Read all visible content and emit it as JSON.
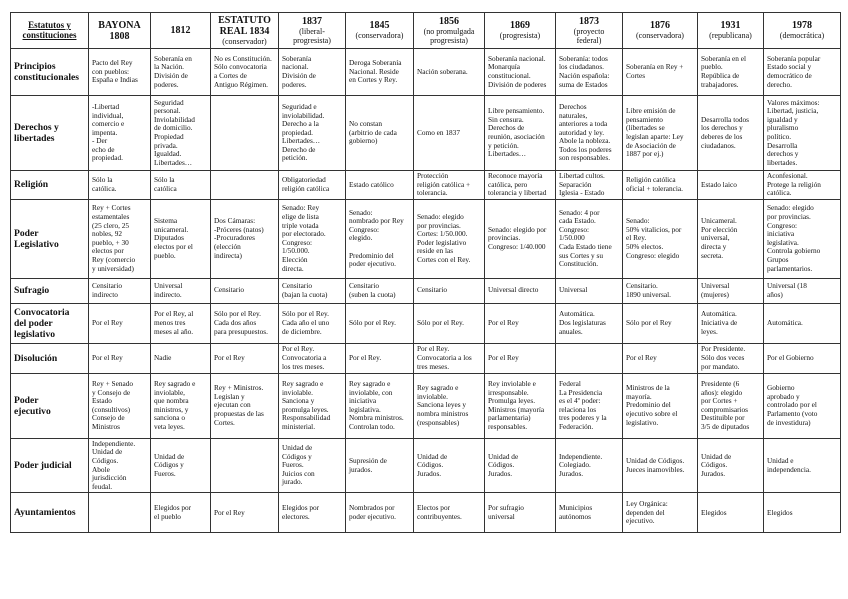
{
  "corner_label": "Estatutos y\nconstituciones",
  "columns": [
    {
      "title": "BAYONA\n1808",
      "subtitle": ""
    },
    {
      "title": "1812",
      "subtitle": ""
    },
    {
      "title": "ESTATUTO\nREAL 1834",
      "subtitle": "(conservador)"
    },
    {
      "title": "1837",
      "subtitle": "(liberal-\nprogresista)"
    },
    {
      "title": "1845",
      "subtitle": "(conservadora)"
    },
    {
      "title": "1856",
      "subtitle": "(no promulgada\nprogresista)"
    },
    {
      "title": "1869",
      "subtitle": "(progresista)"
    },
    {
      "title": "1873",
      "subtitle": "(proyecto\nfederal)"
    },
    {
      "title": "1876",
      "subtitle": "(conservadora)"
    },
    {
      "title": "1931",
      "subtitle": "(republicana)"
    },
    {
      "title": "1978",
      "subtitle": "(democrática)"
    }
  ],
  "rows": [
    {
      "label": "Principios\nconstitucionales",
      "cells": [
        "Pacto del Rey\ncon pueblos:\nEspaña e Indias",
        "Soberanía en\nla Nación.\nDivisión de\npoderes.",
        "No es Constitución.\nSólo convocatoria\na Cortes de\nAntiguo Régimen.",
        "Soberanía\nnacional.\nDivisión de\npoderes.",
        "Deroga Soberanía\nNacional. Reside\nen Cortes y Rey.",
        "Nación soberana.",
        "Soberanía nacional.\nMonarquía\nconstitucional.\nDivisión de poderes",
        "Soberanía: todos\nlos ciudadanos.\nNación española:\nsuma de Estados",
        "Soberanía en Rey +\nCortes",
        "Soberanía en el\npueblo.\nRepública de\ntrabajadores.",
        "Soberanía popular\nEstado social y\ndemocrático de\nderecho."
      ]
    },
    {
      "label": "Derechos y\nlibertades",
      "cells": [
        "-Libertad\nindividual,\ncomercio e\nimpenta.\n-            Der\necho de\npropiedad.",
        "Seguridad\npersonal.\nInviolabilidad\nde domicilio.\nPropiedad\nprivada.\nIgualdad.\nLibertades…",
        "",
        "Seguridad e\ninviolabilidad.\nDerecho a la\npropiedad.\nLibertades…\nDerecho de\npetición.",
        "No constan\n(arbitrio de cada\ngobierno)",
        "Como en 1837",
        "Libre pensamiento.\nSin censura.\nDerechos de\nreunión, asociación\ny petición.\nLibertades…",
        "Derechos\nnaturales,\nanteriores a toda\nautoridad y ley.\nAbole la nobleza.\nTodos los poderes\nson responsables.",
        "Libre emisión de\npensamiento\n(libertades se\nlegislan aparte: Ley\nde Asociación de\n1887 por ej.)",
        "Desarrolla todos\nlos derechos y\ndeberes de los\nciudadanos.",
        "Valores máximos:\nLibertad, justicia,\nigualdad y\npluralismo\npolítico.\nDesarrolla\nderechos y\nlibertades."
      ]
    },
    {
      "label": "Religión",
      "cells": [
        "Sólo la\ncatólica.",
        "Sólo la\ncatólica",
        "",
        "Obligatoriedad\nreligión católica",
        "Estado católico",
        "Protección\nreligión católica +\ntolerancia.",
        "Reconoce mayoría\ncatólica, pero\ntolerancia y libertad",
        "Libertad cultos.\nSeparación\nIglesia - Estado",
        "Religión católica\noficial + tolerancia.",
        "Estado laico",
        "Aconfesional.\nProtege la religión\ncatólica."
      ]
    },
    {
      "label": "Poder\nLegislativo",
      "cells": [
        "Rey + Cortes\nestamentales\n(25 clero, 25\nnobles, 92\npueblo, + 30\nelectos por\nRey (comercio\ny universidad)",
        "Sistema\nunicameral.\nDiputados\nelectos por el\npueblo.",
        "Dos Cámaras:\n-Próceres (natos)\n-Procuradores\n  (elección\n  indirecta)",
        "Senado: Rey\nelige de lista\ntriple votada\npor electorado.\nCongreso:\n1/50.000.\nElección\ndirecta.",
        "Senado:\nnombrado por Rey\nCongreso:\nelegido.\n\nPredominio del\npoder ejecutivo.",
        "Senado: elegido\npor provincias.\nCortes: 1/50.000.\nPoder legislativo\nreside en las\nCortes con el Rey.",
        "Senado: elegido por\nprovincias.\nCongreso: 1/40.000",
        "Senado: 4 por\ncada Estado.\nCongreso:\n1/50.000\nCada Estado tiene\nsus Cortes y su\nConstitución.",
        "Senado:\n50% vitalicios, por\nel Rey.\n50% electos.\nCongreso: elegido",
        "Unicameral.\nPor elección\nuniversal,\ndirecta y\nsecreta.",
        "Senado: elegido\npor provincias.\nCongreso:\niniciativa\nlegislativa.\nControla gobierno\nGrupos\nparlamentarios."
      ]
    },
    {
      "label": "Sufragio",
      "cells": [
        "Censitario\nindirecto",
        "Universal\nindirecto.",
        "Censitario",
        "Censitario\n(bajan la cuota)",
        "Censitario\n(suben la cuota)",
        "Censitario",
        "Universal directo",
        "Universal",
        "Censitario.\n1890 universal.",
        "Universal\n(mujeres)",
        "Universal (18\naños)"
      ]
    },
    {
      "label": "Convocatoria\ndel poder\nlegislativo",
      "cells": [
        "Por el Rey",
        "Por el Rey, al\nmenos tres\nmeses al año.",
        "Sólo por el Rey.\nCada dos años\npara presupuestos.",
        "Sólo por el Rey.\nCada año el uno\nde diciembre.",
        "Sólo por el Rey.",
        "Sólo por el Rey.",
        "Por el Rey",
        "Automática.\nDos legislaturas\nanuales.",
        "Sólo por el Rey",
        "Automática.\nIniciativa de\nleyes.",
        "Automática."
      ]
    },
    {
      "label": "Disolución",
      "cells": [
        "Por el Rey",
        "Nadie",
        "Por el Rey",
        "Por el Rey.\nConvocatoria a\nlos tres meses.",
        "Por el Rey.",
        "Por el Rey.\nConvocatoria a los\ntres meses.",
        "Por el Rey",
        "",
        "Por el Rey",
        "Por Presidente.\nSólo dos veces\npor mandato.",
        "Por el Gobierno"
      ]
    },
    {
      "label": "Poder\nejecutivo",
      "cells": [
        "Rey + Senado\ny Consejo de\nEstado\n(consultivos)\nConsejo de\nMinistros",
        "Rey sagrado e\ninviolable,\nque nombra\nministros, y\nsanciona o\nveta leyes.",
        "Rey + Ministros.\nLegislan y\nejecutan con\npropuestas de las\nCortes.",
        "Rey sagrado e\ninviolable.\nSanciona y\npromulga leyes.\nResponsabilidad\nministerial.",
        "Rey sagrado e\ninviolable, con\niniciativa\nlegislativa.\nNombra ministros.\nControlan todo.",
        "Rey sagrado e\ninviolable.\nSanciona leyes y\nnombra ministros\n(responsables)",
        "Rey inviolable e\nirresponsable.\nPromulga leyes.\nMinistros (mayoría\nparlamentaria)\nresponsables.",
        "Federal\nLa Presidencia\nes el 4º poder:\nrelaciona los\ntres poderes y la\nFederación.",
        "Ministros de la\nmayoría.\nPredominio del\nejecutivo sobre el\nlegislativo.",
        "Presidente (6\naños): elegido\npor Cortes +\ncompromisarios\nDestituible por\n3/5 de diputados",
        "Gobierno\naprobado y\ncontrolado por el\nParlamento (voto\nde investidura)"
      ]
    },
    {
      "label": "Poder judicial",
      "cells": [
        "Independiente.\nUnidad de\nCódigos.\nAbole\njurisdicción\nfeudal.",
        "Unidad de\nCódigos y\nFueros.",
        "",
        "Unidad de\nCódigos y\nFueros.\nJuicios con\njurado.",
        "Supresión de\njurados.",
        "Unidad de\nCódigos.\nJurados.",
        "Unidad de\nCódigos.\nJurados.",
        "Independiente.\nColegiado.\nJurados.",
        "Unidad de Códigos.\nJueces inamovibles.",
        "Unidad de\nCódigos.\nJurados.",
        "Unidad e\nindependencia."
      ]
    },
    {
      "label": "Ayuntamientos",
      "cells": [
        "",
        "Elegidos por\nel pueblo",
        "Por el Rey",
        "Elegidos por\nelectores.",
        "Nombrados por\npoder ejecutivo.",
        "Electos por\ncontribuyentes.",
        "Por sufragio\nuniversal",
        "Municipios\nautónomos",
        "Ley Orgánica:\ndependen del\nejecutivo.",
        "Elegidos",
        "Elegidos"
      ]
    }
  ]
}
